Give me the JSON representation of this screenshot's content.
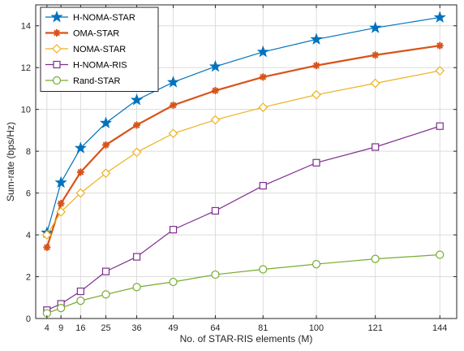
{
  "chart_data": {
    "type": "line",
    "title": "",
    "xlabel": "No. of STAR-RIS elements (M)",
    "ylabel": "Sum-rate (bps/Hz)",
    "x": [
      4,
      9,
      16,
      25,
      36,
      49,
      64,
      81,
      100,
      121,
      144
    ],
    "xticks": [
      4,
      9,
      16,
      25,
      36,
      49,
      64,
      81,
      100,
      121,
      144
    ],
    "xlim": [
      0,
      150
    ],
    "ylim": [
      0,
      15
    ],
    "yticks": [
      0,
      2,
      4,
      6,
      8,
      10,
      12,
      14
    ],
    "grid": true,
    "legend_position": "top-left",
    "series": [
      {
        "name": "H-NOMA-STAR",
        "color": "#0072BD",
        "marker": "star",
        "values": [
          4.1,
          6.5,
          8.15,
          9.35,
          10.45,
          11.3,
          12.05,
          12.75,
          13.35,
          13.9,
          14.4
        ]
      },
      {
        "name": "OMA-STAR",
        "color": "#D95319",
        "marker": "asterisk",
        "values": [
          3.4,
          5.5,
          7.0,
          8.3,
          9.25,
          10.2,
          10.9,
          11.55,
          12.1,
          12.6,
          13.05
        ]
      },
      {
        "name": "NOMA-STAR",
        "color": "#EDB120",
        "marker": "diamond",
        "values": [
          4.0,
          5.1,
          6.0,
          6.95,
          7.95,
          8.85,
          9.5,
          10.1,
          10.7,
          11.25,
          11.85
        ]
      },
      {
        "name": "H-NOMA-RIS",
        "color": "#7E2F8E",
        "marker": "square",
        "values": [
          0.4,
          0.7,
          1.3,
          2.25,
          2.95,
          4.25,
          5.15,
          6.35,
          7.45,
          8.2,
          9.2
        ]
      },
      {
        "name": "Rand-STAR",
        "color": "#77AC30",
        "marker": "circle",
        "values": [
          0.25,
          0.5,
          0.85,
          1.15,
          1.5,
          1.75,
          2.1,
          2.35,
          2.6,
          2.85,
          3.05
        ]
      }
    ]
  }
}
